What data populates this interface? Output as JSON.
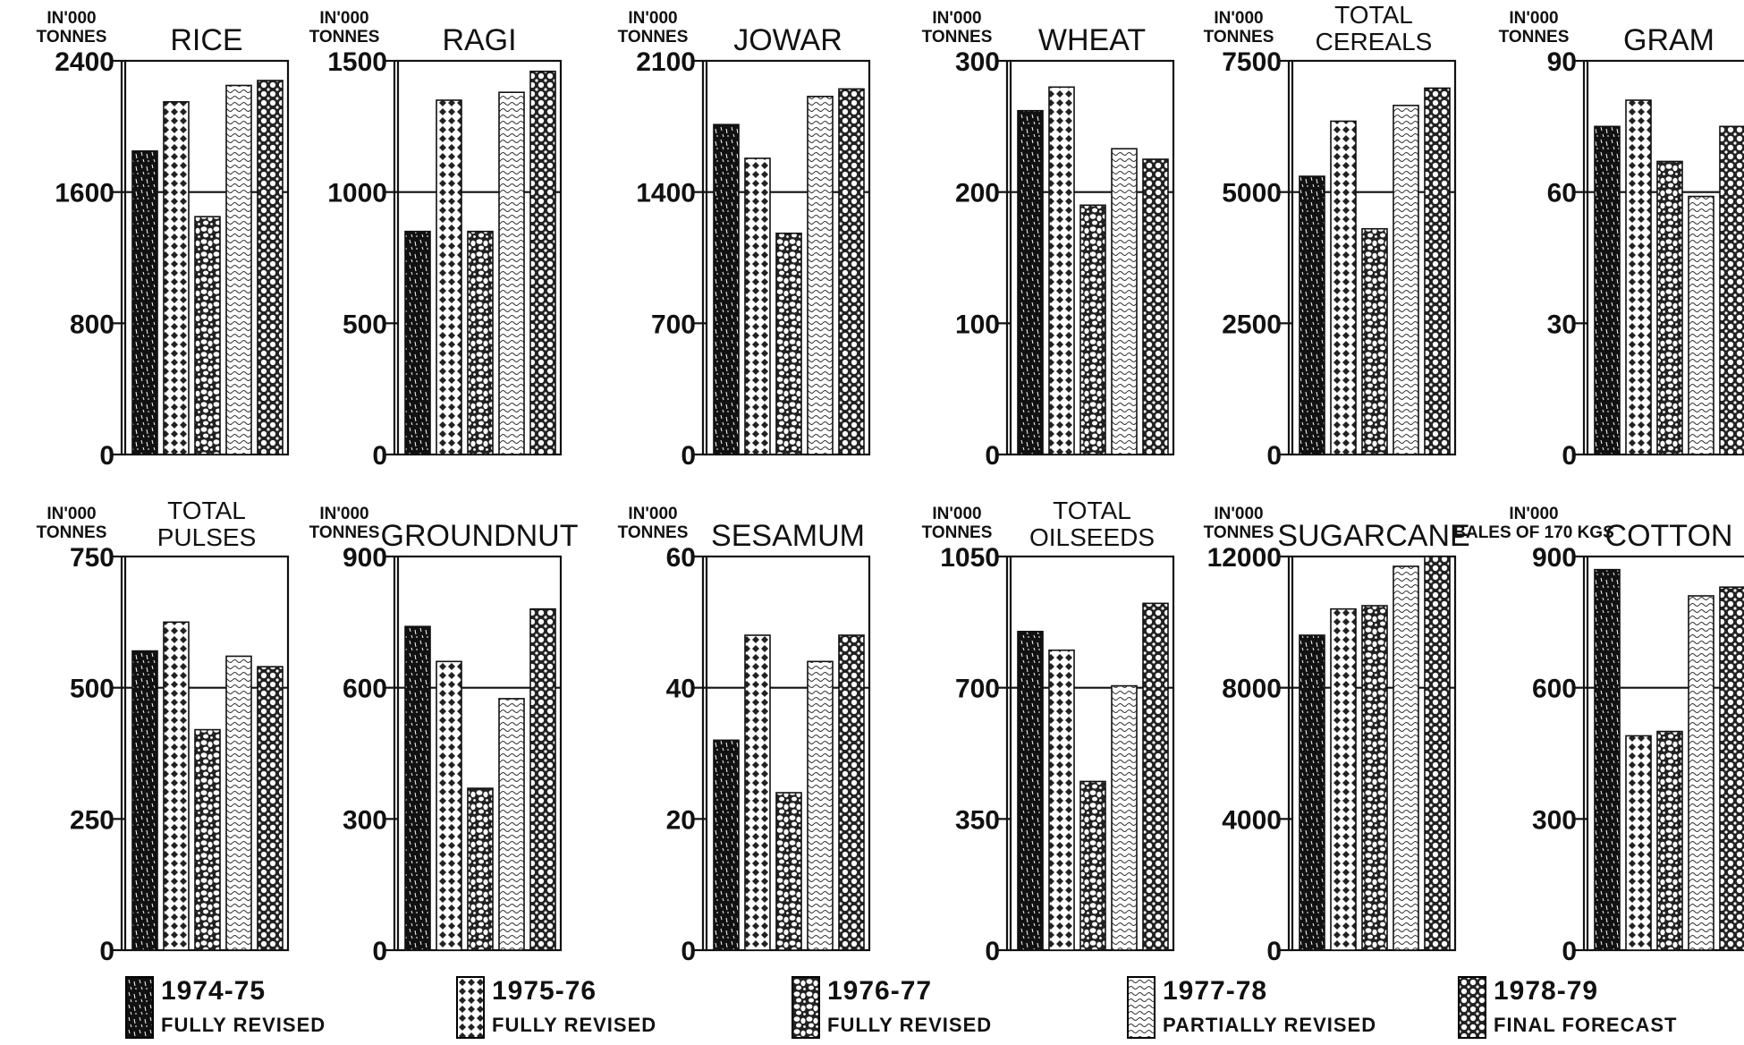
{
  "legend": [
    {
      "year": "1974-75",
      "status": "FULLY REVISED",
      "pattern": "p0"
    },
    {
      "year": "1975-76",
      "status": "FULLY REVISED",
      "pattern": "p1"
    },
    {
      "year": "1976-77",
      "status": "FULLY REVISED",
      "pattern": "p2"
    },
    {
      "year": "1977-78",
      "status": "PARTIALLY REVISED",
      "pattern": "p3"
    },
    {
      "year": "1978-79",
      "status": "FINAL FORECAST",
      "pattern": "p4"
    }
  ],
  "colors": {
    "ink": "#111111",
    "paper": "#ffffff"
  },
  "chart_data": [
    {
      "type": "bar",
      "title": "RICE",
      "unit": "IN'000 TONNES",
      "categories": [
        "1974-75",
        "1975-76",
        "1976-77",
        "1977-78",
        "1978-79"
      ],
      "values": [
        1850,
        2150,
        1450,
        2250,
        2280
      ],
      "ylim": [
        0,
        2400
      ],
      "yticks": [
        0,
        800,
        1600,
        2400
      ],
      "ytick_labels": [
        "0",
        "800",
        "1600",
        "2400"
      ],
      "grid": "midline at 1600"
    },
    {
      "type": "bar",
      "title": "RAGI",
      "unit": "IN'000 TONNES",
      "categories": [
        "1974-75",
        "1975-76",
        "1976-77",
        "1977-78",
        "1978-79"
      ],
      "values": [
        850,
        1350,
        850,
        1380,
        1460
      ],
      "ylim": [
        0,
        1500
      ],
      "yticks": [
        0,
        500,
        1000,
        1500
      ],
      "ytick_labels": [
        "0",
        "500",
        "1000",
        "1500"
      ],
      "grid": "midline at 1000"
    },
    {
      "type": "bar",
      "title": "JOWAR",
      "unit": "IN'000 TONNES",
      "categories": [
        "1974-75",
        "1975-76",
        "1976-77",
        "1977-78",
        "1978-79"
      ],
      "values": [
        1760,
        1580,
        1180,
        1910,
        1950
      ],
      "ylim": [
        0,
        2100
      ],
      "yticks": [
        0,
        700,
        1400,
        2100
      ],
      "ytick_labels": [
        "0",
        "700",
        "1400",
        "2100"
      ],
      "grid": "midline at 1400"
    },
    {
      "type": "bar",
      "title": "WHEAT",
      "unit": "IN'000 TONNES",
      "categories": [
        "1974-75",
        "1975-76",
        "1976-77",
        "1977-78",
        "1978-79"
      ],
      "values": [
        262,
        280,
        190,
        233,
        225
      ],
      "ylim": [
        0,
        300
      ],
      "yticks": [
        0,
        100,
        200,
        300
      ],
      "ytick_labels": [
        "0",
        "100",
        "200",
        "300"
      ],
      "grid": "midline at 200"
    },
    {
      "type": "bar",
      "title": "TOTAL CEREALS",
      "unit": "IN'000 TONNES",
      "categories": [
        "1974-75",
        "1975-76",
        "1976-77",
        "1977-78",
        "1978-79"
      ],
      "values": [
        5300,
        6350,
        4300,
        6650,
        6980
      ],
      "ylim": [
        0,
        7500
      ],
      "yticks": [
        0,
        2500,
        5000,
        7500
      ],
      "ytick_labels": [
        "0",
        "2500",
        "5000",
        "7500"
      ],
      "grid": "midline at 5000"
    },
    {
      "type": "bar",
      "title": "GRAM",
      "unit": "IN'000 TONNES",
      "categories": [
        "1974-75",
        "1975-76",
        "1976-77",
        "1977-78",
        "1978-79"
      ],
      "values": [
        75,
        81,
        67,
        59,
        75
      ],
      "ylim": [
        0,
        90
      ],
      "yticks": [
        0,
        30,
        60,
        90
      ],
      "ytick_labels": [
        "0",
        "30",
        "60",
        "90"
      ],
      "grid": "midline at 60"
    },
    {
      "type": "bar",
      "title": "TOTAL PULSES",
      "unit": "IN'000 TONNES",
      "categories": [
        "1974-75",
        "1975-76",
        "1976-77",
        "1977-78",
        "1978-79"
      ],
      "values": [
        570,
        625,
        420,
        560,
        540
      ],
      "ylim": [
        0,
        750
      ],
      "yticks": [
        0,
        250,
        500,
        750
      ],
      "ytick_labels": [
        "0",
        "250",
        "500",
        "750"
      ],
      "grid": "midline at 500"
    },
    {
      "type": "bar",
      "title": "GROUNDNUT",
      "unit": "IN'000 TONNES",
      "categories": [
        "1974-75",
        "1975-76",
        "1976-77",
        "1977-78",
        "1978-79"
      ],
      "values": [
        740,
        660,
        370,
        575,
        780
      ],
      "ylim": [
        0,
        900
      ],
      "yticks": [
        0,
        300,
        600,
        900
      ],
      "ytick_labels": [
        "0",
        "300",
        "600",
        "900"
      ],
      "grid": "midline at 600"
    },
    {
      "type": "bar",
      "title": "SESAMUM",
      "unit": "IN'000 TONNES",
      "categories": [
        "1974-75",
        "1975-76",
        "1976-77",
        "1977-78",
        "1978-79"
      ],
      "values": [
        32,
        48,
        24,
        44,
        48
      ],
      "ylim": [
        0,
        60
      ],
      "yticks": [
        0,
        20,
        40,
        60
      ],
      "ytick_labels": [
        "0",
        "20",
        "40",
        "60"
      ],
      "grid": "midline at 40"
    },
    {
      "type": "bar",
      "title": "TOTAL OILSEEDS",
      "unit": "IN'000 TONNES",
      "categories": [
        "1974-75",
        "1975-76",
        "1976-77",
        "1977-78",
        "1978-79"
      ],
      "values": [
        850,
        800,
        450,
        705,
        925
      ],
      "ylim": [
        0,
        1050
      ],
      "yticks": [
        0,
        350,
        700,
        1050
      ],
      "ytick_labels": [
        "0",
        "350",
        "700",
        "1050"
      ],
      "grid": "midline at 700"
    },
    {
      "type": "bar",
      "title": "SUGARCANE",
      "unit": "IN'000 TONNES",
      "categories": [
        "1974-75",
        "1975-76",
        "1976-77",
        "1977-78",
        "1978-79"
      ],
      "values": [
        9600,
        10400,
        10500,
        11700,
        12000
      ],
      "ylim": [
        0,
        12000
      ],
      "yticks": [
        0,
        4000,
        8000,
        12000
      ],
      "ytick_labels": [
        "0",
        "4000",
        "8000",
        "12000"
      ],
      "grid": "midline at 8000"
    },
    {
      "type": "bar",
      "title": "COTTON",
      "unit": "IN'000 BALES OF 170 KGS",
      "categories": [
        "1974-75",
        "1975-76",
        "1976-77",
        "1977-78",
        "1978-79"
      ],
      "values": [
        870,
        490,
        500,
        810,
        830
      ],
      "ylim": [
        0,
        900
      ],
      "yticks": [
        0,
        300,
        600,
        900
      ],
      "ytick_labels": [
        "0",
        "300",
        "600",
        "900"
      ],
      "grid": "midline at 600"
    }
  ]
}
